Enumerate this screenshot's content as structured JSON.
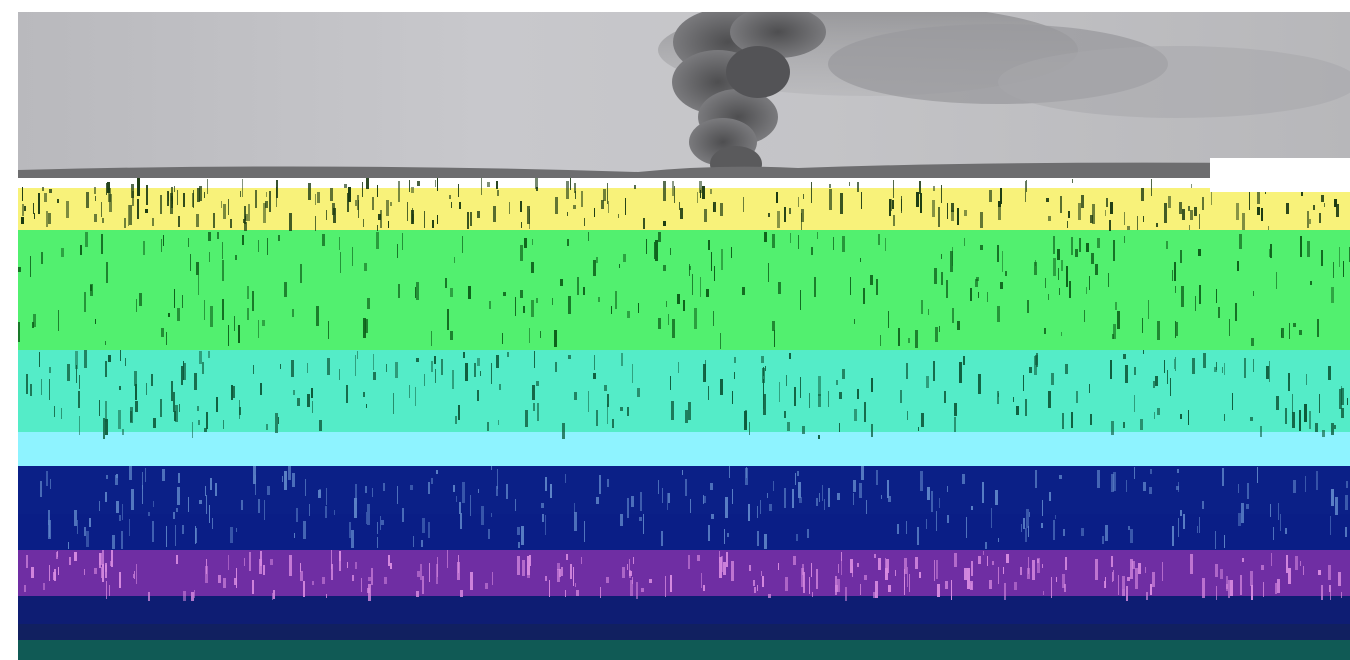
{
  "image": {
    "subject": "volcanic-eruption-plume",
    "colors": {
      "sky": "#c6c6c9",
      "plume": "#5f5f62",
      "yellow_band": "#f8f27a",
      "green_band": "#52f06f",
      "teal_band": "#54ecc8",
      "cyan_band": "#8ef3ff",
      "navy_band": "#0b2087",
      "purple_band": "#6f2ea3",
      "deep_band": "#112060"
    }
  }
}
